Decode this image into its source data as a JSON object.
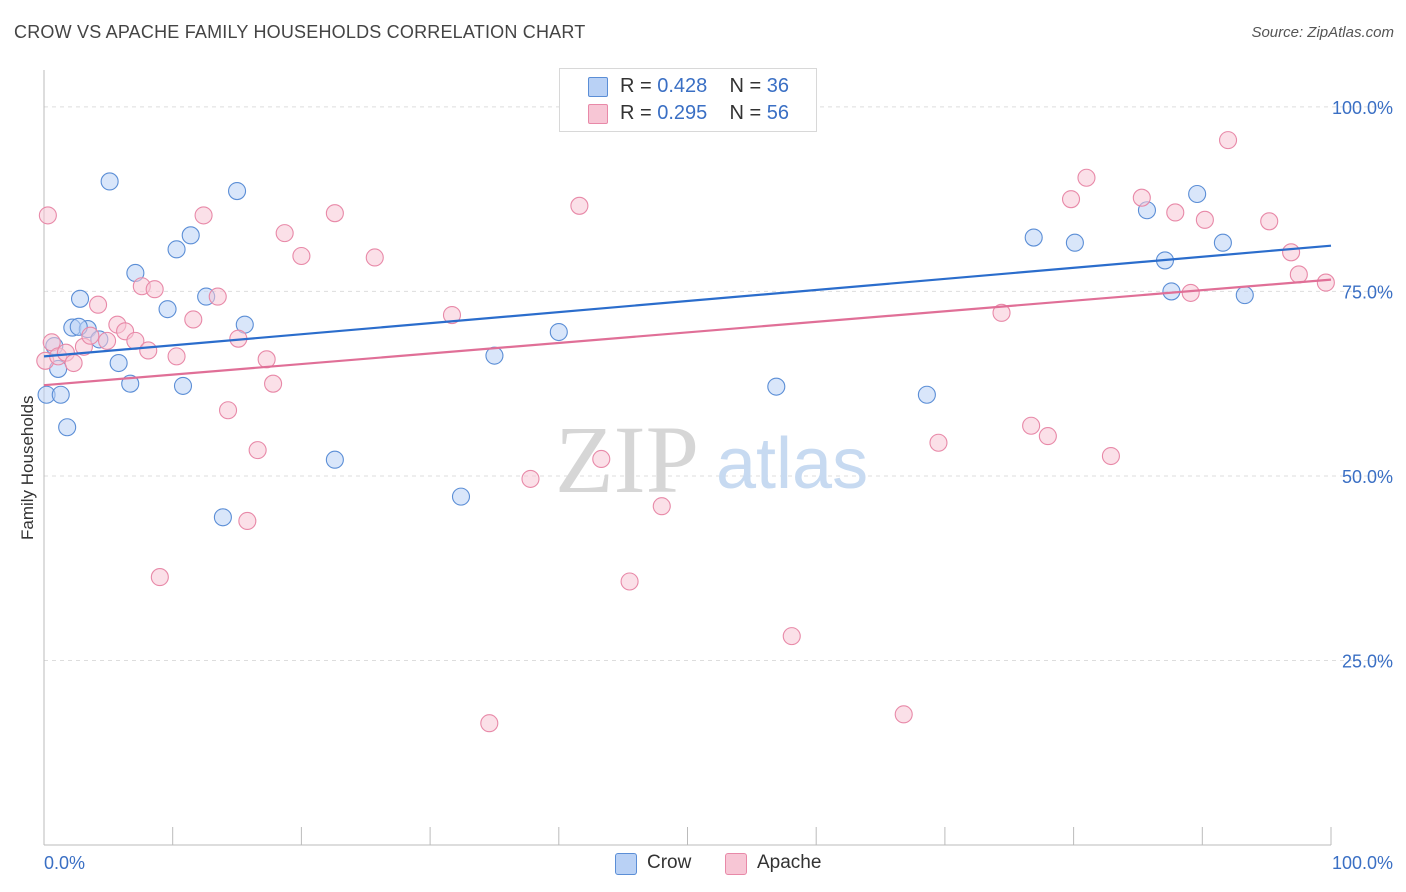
{
  "title": "CROW VS APACHE FAMILY HOUSEHOLDS CORRELATION CHART",
  "source": "Source: ZipAtlas.com",
  "watermark": {
    "zip": "ZIP",
    "atlas": "atlas"
  },
  "colors": {
    "crow_fill": "#b9d1f5",
    "crow_stroke": "#5b8ed6",
    "crow_line": "#2b6dcc",
    "apache_fill": "#f7c6d5",
    "apache_stroke": "#e889a8",
    "apache_line": "#e06f97",
    "tick_label": "#3a6fc4",
    "grid": "#dddddd",
    "axis": "#bbbbbb"
  },
  "legend_top": [
    {
      "series": "crow",
      "r_label": "R = ",
      "r_value": "0.428",
      "n_label": "N = ",
      "n_value": "36"
    },
    {
      "series": "apache",
      "r_label": "R = ",
      "r_value": "0.295",
      "n_label": "N = ",
      "n_value": "56"
    }
  ],
  "legend_bottom": [
    {
      "series": "crow",
      "label": "Crow"
    },
    {
      "series": "apache",
      "label": "Apache"
    }
  ],
  "chart_data": {
    "type": "scatter",
    "title": "CROW VS APACHE FAMILY HOUSEHOLDS CORRELATION CHART",
    "xlabel": "",
    "ylabel": "Family Households",
    "xlim": [
      0,
      100
    ],
    "ylim": [
      0,
      105
    ],
    "x_tick_labels": [
      {
        "value": 0,
        "label": "0.0%"
      },
      {
        "value": 100,
        "label": "100.0%"
      }
    ],
    "y_tick_labels": [
      {
        "value": 25,
        "label": "25.0%"
      },
      {
        "value": 50,
        "label": "50.0%"
      },
      {
        "value": 75,
        "label": "75.0%"
      },
      {
        "value": 100,
        "label": "100.0%"
      }
    ],
    "y_gridlines": [
      25,
      50,
      75,
      100
    ],
    "series": [
      {
        "name": "Crow",
        "r": 0.428,
        "n": 36,
        "trend": {
          "x": [
            0,
            100
          ],
          "y": [
            66.2,
            81.2
          ]
        },
        "x": [
          0.2,
          0.8,
          1.3,
          1.8,
          2.2,
          2.8,
          3.4,
          4.3,
          5.1,
          5.8,
          6.7,
          7.1,
          9.6,
          10.3,
          10.8,
          11.4,
          12.6,
          13.9,
          15.0,
          15.6,
          22.6,
          32.4,
          35.0,
          40.0,
          56.9,
          68.6,
          76.9,
          80.1,
          85.7,
          87.1,
          87.6,
          89.6,
          91.6,
          93.3,
          2.7,
          1.1
        ],
        "y": [
          61.0,
          67.6,
          61.0,
          56.6,
          70.1,
          74.0,
          69.9,
          68.5,
          89.9,
          65.3,
          62.5,
          77.5,
          72.6,
          80.7,
          62.2,
          82.6,
          74.3,
          44.4,
          88.6,
          70.5,
          52.2,
          47.2,
          66.3,
          69.5,
          62.1,
          61.0,
          82.3,
          81.6,
          86.0,
          79.2,
          75.0,
          88.2,
          81.6,
          74.5,
          70.2,
          64.5
        ]
      },
      {
        "name": "Apache",
        "r": 0.295,
        "n": 56,
        "trend": {
          "x": [
            0,
            100
          ],
          "y": [
            62.3,
            76.6
          ]
        },
        "x": [
          0.1,
          0.6,
          1.1,
          1.7,
          2.3,
          3.1,
          3.6,
          4.2,
          4.9,
          5.7,
          6.3,
          7.1,
          7.6,
          8.1,
          8.6,
          9.0,
          10.3,
          11.6,
          12.4,
          13.5,
          14.3,
          15.1,
          15.8,
          16.6,
          17.3,
          17.8,
          18.7,
          20.0,
          22.6,
          25.7,
          31.7,
          34.6,
          37.8,
          41.6,
          45.5,
          43.3,
          48.0,
          58.1,
          66.8,
          69.5,
          74.4,
          76.7,
          78.0,
          79.8,
          81.0,
          82.9,
          85.3,
          87.9,
          89.1,
          90.2,
          92.0,
          95.2,
          96.9,
          97.5,
          99.6,
          0.3
        ],
        "y": [
          65.6,
          68.1,
          66.2,
          66.7,
          65.3,
          67.5,
          69.0,
          73.2,
          68.3,
          70.5,
          69.6,
          68.3,
          75.7,
          67.0,
          75.3,
          36.3,
          66.2,
          71.2,
          85.3,
          74.3,
          58.9,
          68.6,
          43.9,
          53.5,
          65.8,
          62.5,
          82.9,
          79.8,
          85.6,
          79.6,
          71.8,
          16.5,
          49.6,
          86.6,
          35.7,
          52.3,
          45.9,
          28.3,
          17.7,
          54.5,
          72.1,
          56.8,
          55.4,
          87.5,
          90.4,
          52.7,
          87.7,
          85.7,
          74.8,
          84.7,
          95.5,
          84.5,
          80.3,
          77.3,
          76.2,
          85.3
        ]
      }
    ]
  }
}
